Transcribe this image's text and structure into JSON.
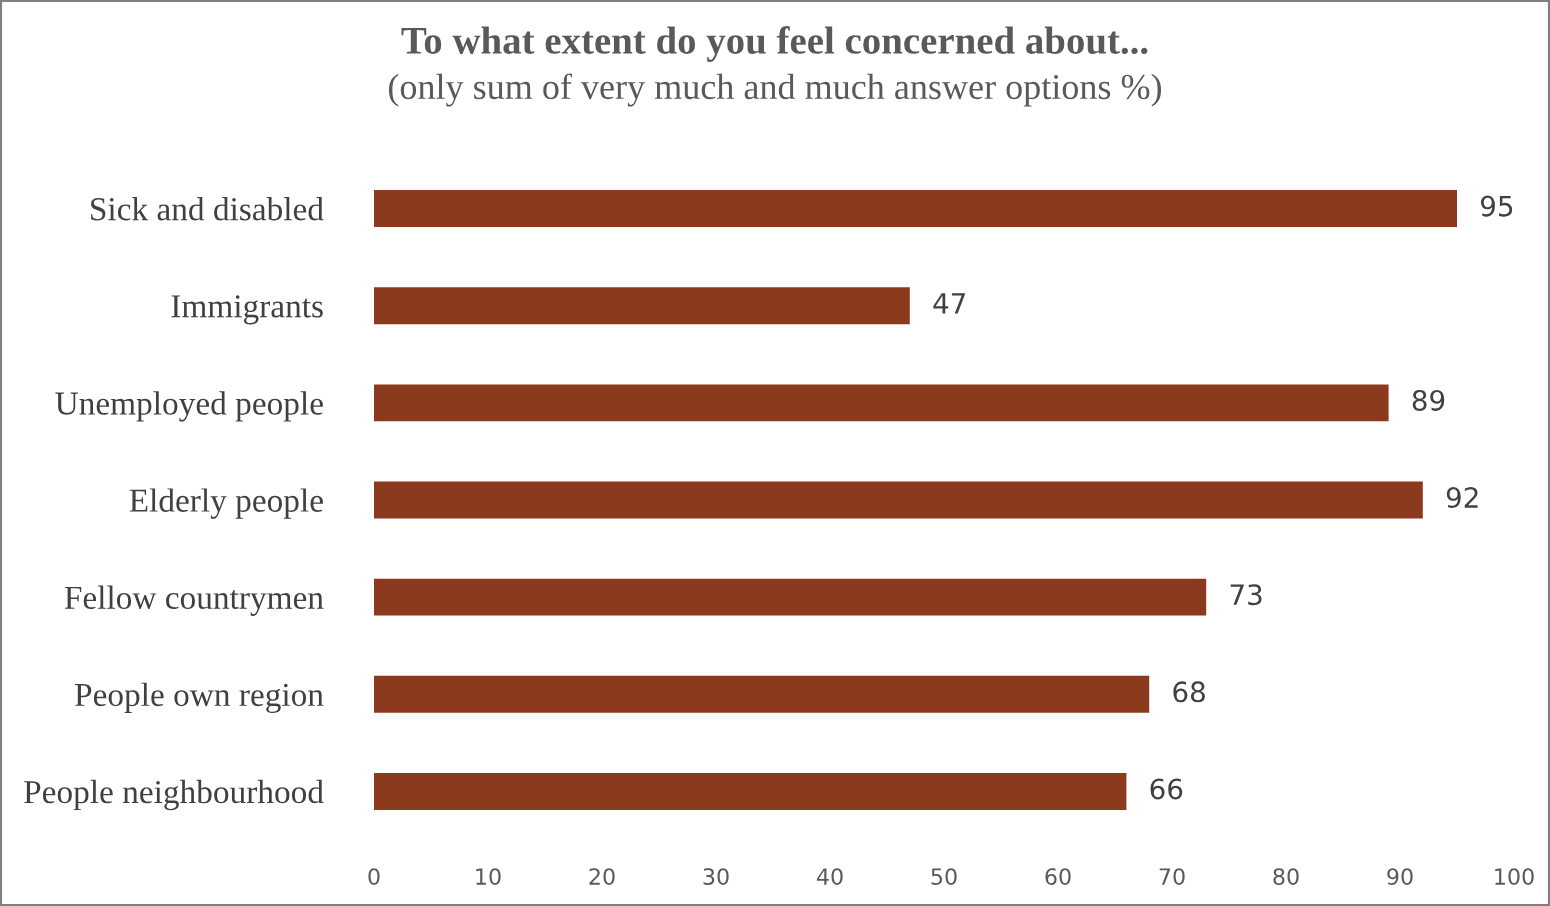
{
  "chart_data": {
    "type": "bar",
    "orientation": "horizontal",
    "title": "To what extent do you feel concerned about...",
    "subtitle": "(only sum of very much and much answer options %)",
    "categories": [
      "Sick and disabled",
      "Immigrants",
      "Unemployed people",
      "Elderly people",
      "Fellow countrymen",
      "People own region",
      "People neighbourhood"
    ],
    "values": [
      95,
      47,
      89,
      92,
      73,
      68,
      66
    ],
    "color": "#8b3a1e",
    "xlim": [
      0,
      100
    ],
    "xticks": [
      0,
      10,
      20,
      30,
      40,
      50,
      60,
      70,
      80,
      90,
      100
    ],
    "data_labels": true,
    "grid": false,
    "legend": false
  }
}
